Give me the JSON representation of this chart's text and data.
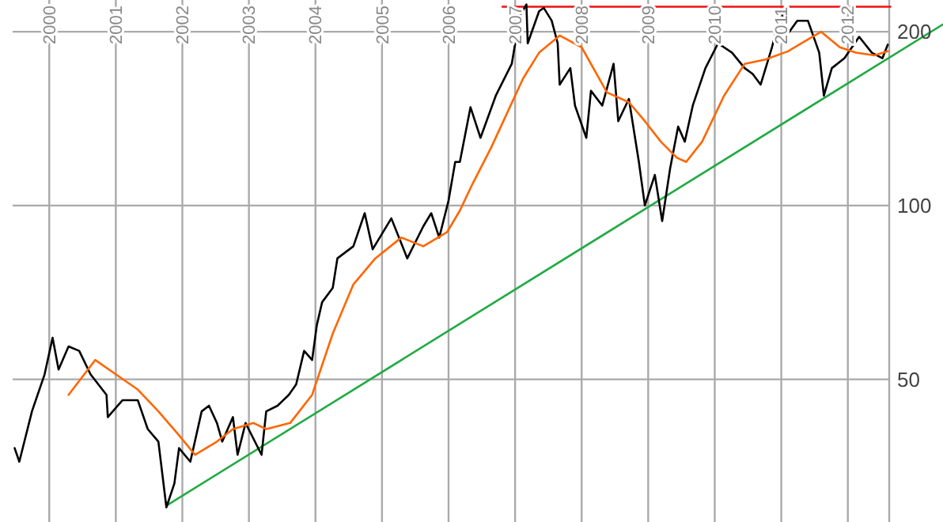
{
  "chart_data": {
    "type": "line",
    "log": "y",
    "grid": true,
    "marker": "none",
    "line_style": "solid",
    "xlim": [
      1999.45,
      2013.43
    ],
    "xticks": [
      2000,
      2001,
      2002,
      2003,
      2004,
      2005,
      2006,
      2007,
      2008,
      2009,
      2010,
      2011,
      2012
    ],
    "ylim": [
      28.3,
      227
    ],
    "yticks": [
      50,
      100,
      200
    ],
    "series": [
      {
        "color": "#22aa44",
        "x": [
          2001.76,
          2013.43
        ],
        "values": [
          30.2,
          206
        ]
      },
      {
        "color": "#ee1111",
        "x": [
          2006.81,
          2012.64
        ],
        "values": [
          221,
          221
        ]
      },
      {
        "color": "#000000",
        "x": [
          1999.48,
          1999.55,
          1999.74,
          1999.93,
          2000.05,
          2000.14,
          2000.29,
          2000.45,
          2000.62,
          2000.86,
          2000.88,
          2001.1,
          2001.33,
          2001.48,
          2001.64,
          2001.76,
          2001.88,
          2001.95,
          2002.12,
          2002.29,
          2002.4,
          2002.52,
          2002.6,
          2002.76,
          2002.83,
          2002.95,
          2003.19,
          2003.26,
          2003.43,
          2003.6,
          2003.71,
          2003.83,
          2003.95,
          2004.02,
          2004.1,
          2004.26,
          2004.33,
          2004.57,
          2004.74,
          2004.86,
          2005.14,
          2005.38,
          2005.62,
          2005.74,
          2005.86,
          2006.0,
          2006.1,
          2006.17,
          2006.33,
          2006.48,
          2006.71,
          2006.95,
          2007.07,
          2007.17,
          2007.19,
          2007.36,
          2007.43,
          2007.55,
          2007.64,
          2007.67,
          2007.83,
          2007.9,
          2008.07,
          2008.14,
          2008.31,
          2008.48,
          2008.55,
          2008.71,
          2008.86,
          2008.95,
          2009.1,
          2009.21,
          2009.33,
          2009.45,
          2009.55,
          2009.67,
          2009.86,
          2010.05,
          2010.26,
          2010.45,
          2010.57,
          2010.69,
          2010.86,
          2011.0,
          2011.12,
          2011.24,
          2011.4,
          2011.57,
          2011.64,
          2011.76,
          2011.95,
          2012.17,
          2012.36,
          2012.52,
          2012.6
        ],
        "values": [
          38,
          36,
          44,
          51,
          59,
          52,
          57,
          56,
          51,
          47,
          43,
          46,
          46,
          41,
          39,
          30,
          33,
          38,
          36,
          44,
          45,
          42,
          39,
          43,
          37,
          42,
          37,
          44,
          45,
          47,
          49,
          56,
          54,
          62,
          68,
          72,
          81,
          85,
          97,
          84,
          95,
          81,
          92,
          97,
          88,
          102,
          119,
          119,
          148,
          131,
          155,
          176,
          213,
          223,
          191,
          217,
          220,
          209,
          191,
          162,
          173,
          149,
          131,
          158,
          149,
          176,
          140,
          153,
          119,
          100,
          113,
          94,
          116,
          137,
          129,
          149,
          173,
          191,
          184,
          173,
          169,
          162,
          188,
          217,
          200,
          209,
          209,
          184,
          155,
          173,
          180,
          196,
          184,
          180,
          190
        ]
      },
      {
        "color": "#ff6600",
        "x": [
          2000.29,
          2000.69,
          2001.0,
          2001.33,
          2001.64,
          2001.95,
          2002.19,
          2002.52,
          2002.76,
          2003.07,
          2003.26,
          2003.62,
          2003.95,
          2004.26,
          2004.57,
          2004.9,
          2005.29,
          2005.62,
          2005.98,
          2006.17,
          2006.36,
          2006.64,
          2007.12,
          2007.36,
          2007.67,
          2008.0,
          2008.38,
          2008.71,
          2008.95,
          2009.19,
          2009.43,
          2009.57,
          2009.81,
          2010.14,
          2010.45,
          2010.76,
          2011.1,
          2011.4,
          2011.6,
          2011.88,
          2012.12,
          2012.4,
          2012.6
        ],
        "values": [
          47,
          54,
          51,
          48,
          44,
          40,
          37,
          39,
          41,
          42,
          41,
          42,
          47,
          60,
          73,
          81,
          88,
          85,
          90,
          98,
          109,
          126,
          166,
          184,
          197,
          188,
          157,
          151,
          140,
          129,
          121,
          119,
          129,
          155,
          176,
          179,
          185,
          194,
          200,
          188,
          184,
          182,
          185
        ]
      }
    ]
  }
}
